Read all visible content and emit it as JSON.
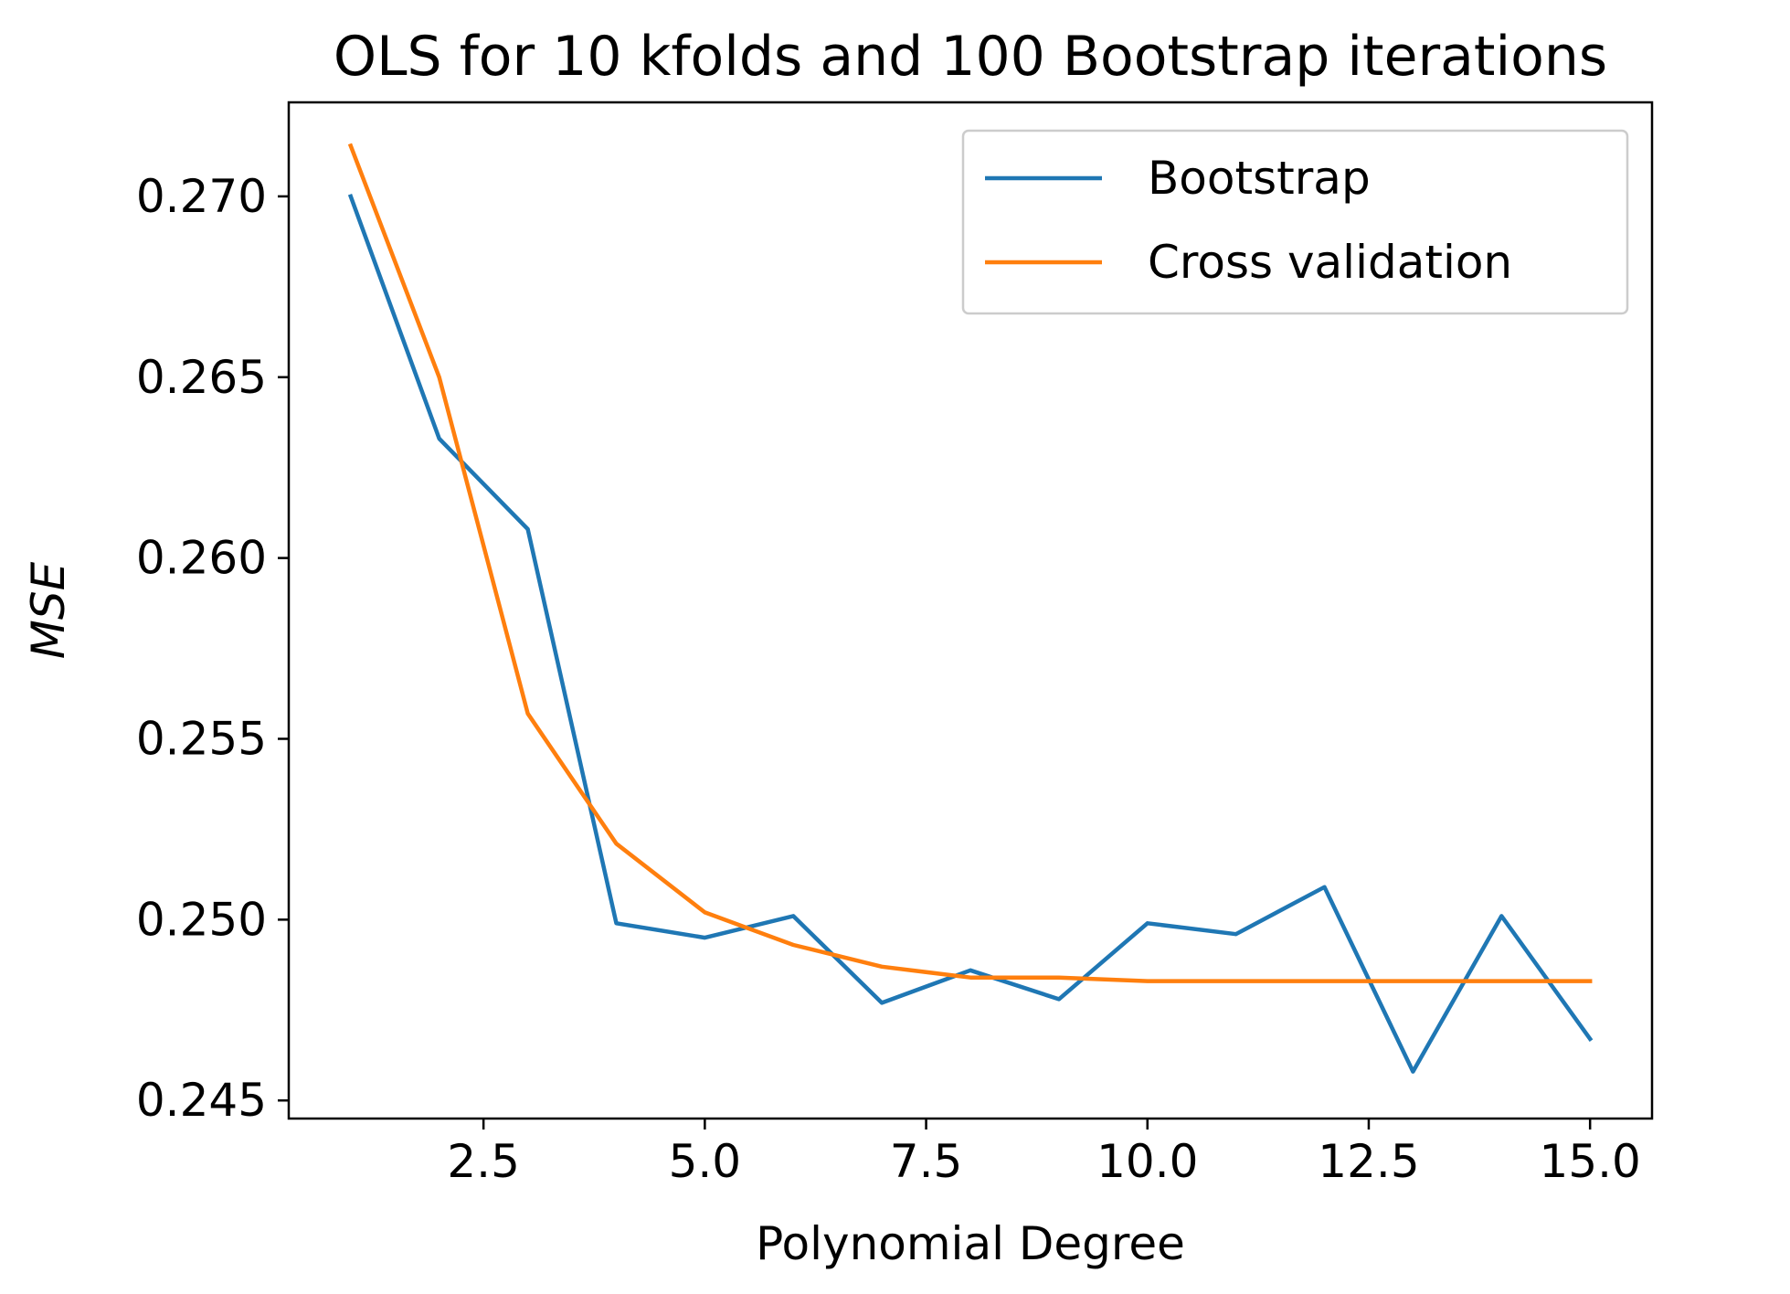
{
  "chart_data": {
    "type": "line",
    "title": "OLS for 10 kfolds and 100 Bootstrap iterations",
    "xlabel": "Polynomial Degree",
    "ylabel": "MSE",
    "xlim": [
      0.3,
      15.7
    ],
    "ylim": [
      0.2445,
      0.2726
    ],
    "xticks": [
      2.5,
      5.0,
      7.5,
      10.0,
      12.5,
      15.0
    ],
    "xtick_labels": [
      "2.5",
      "5.0",
      "7.5",
      "10.0",
      "12.5",
      "15.0"
    ],
    "yticks": [
      0.245,
      0.25,
      0.255,
      0.26,
      0.265,
      0.27
    ],
    "ytick_labels": [
      "0.245",
      "0.250",
      "0.255",
      "0.260",
      "0.265",
      "0.270"
    ],
    "grid": false,
    "legend_position": "top-right",
    "x": [
      1,
      2,
      3,
      4,
      5,
      6,
      7,
      8,
      9,
      10,
      11,
      12,
      13,
      14,
      15
    ],
    "series": [
      {
        "name": "Bootstrap",
        "color": "#1f77b4",
        "values": [
          0.27,
          0.2633,
          0.2608,
          0.2499,
          0.2495,
          0.2501,
          0.2477,
          0.2486,
          0.2478,
          0.2499,
          0.2496,
          0.2509,
          0.2458,
          0.2501,
          0.2467
        ]
      },
      {
        "name": "Cross validation",
        "color": "#ff7f0e",
        "values": [
          0.2714,
          0.265,
          0.2557,
          0.2521,
          0.2502,
          0.2493,
          0.2487,
          0.2484,
          0.2484,
          0.2483,
          0.2483,
          0.2483,
          0.2483,
          0.2483,
          0.2483
        ]
      }
    ]
  }
}
